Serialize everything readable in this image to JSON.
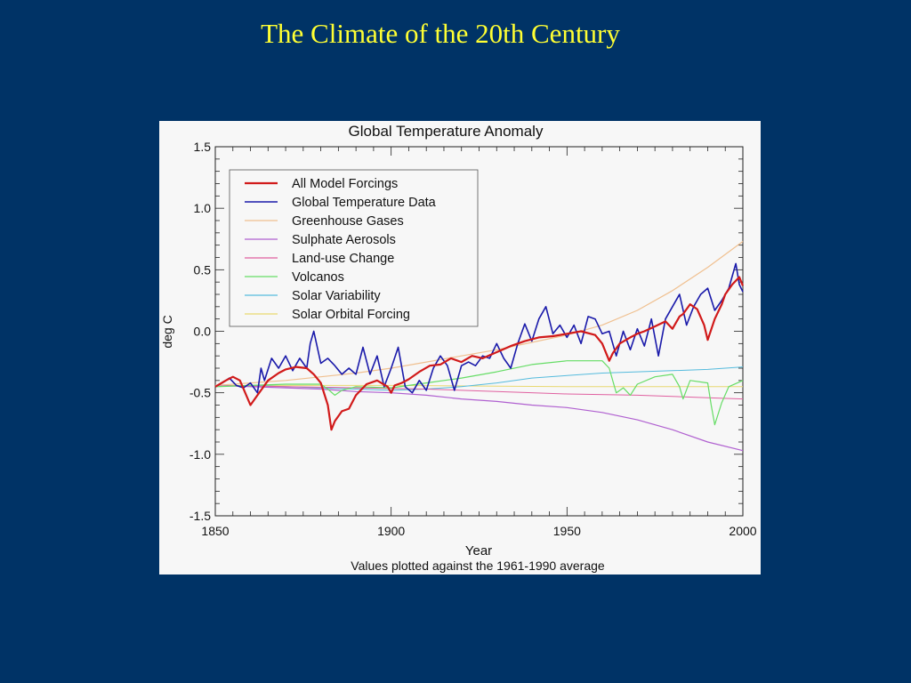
{
  "slide": {
    "title": "The Climate of the 20th Century",
    "background": "#003366",
    "title_color": "#ffff33"
  },
  "chart_data": {
    "type": "line",
    "title": "Global Temperature Anomaly",
    "xlabel": "Year",
    "ylabel": "deg C",
    "note": "Values plotted against the 1961-1990 average",
    "xlim": [
      1850,
      2000
    ],
    "ylim": [
      -1.5,
      1.5
    ],
    "xticks": [
      1850,
      1900,
      1950,
      2000
    ],
    "yticks": [
      "1.5",
      "1.0",
      "0.5",
      "0.0",
      "-0.5",
      "-1.0",
      "-1.5"
    ],
    "legend_position": "top-left",
    "grid": false,
    "series": [
      {
        "name": "All Model Forcings",
        "color": "#d11a1a",
        "width": 2.2,
        "x": [
          1850,
          1853,
          1855,
          1857,
          1860,
          1862,
          1865,
          1868,
          1870,
          1873,
          1876,
          1878,
          1880,
          1882,
          1883,
          1884,
          1886,
          1888,
          1890,
          1893,
          1896,
          1899,
          1900,
          1901,
          1903,
          1905,
          1908,
          1911,
          1914,
          1917,
          1920,
          1923,
          1926,
          1930,
          1934,
          1938,
          1942,
          1946,
          1950,
          1954,
          1958,
          1960,
          1962,
          1963,
          1965,
          1968,
          1970,
          1972,
          1975,
          1978,
          1980,
          1982,
          1983,
          1985,
          1987,
          1989,
          1990,
          1992,
          1994,
          1995,
          1997,
          1999,
          2000
        ],
        "y": [
          -0.45,
          -0.4,
          -0.37,
          -0.4,
          -0.6,
          -0.52,
          -0.4,
          -0.34,
          -0.31,
          -0.29,
          -0.3,
          -0.35,
          -0.42,
          -0.6,
          -0.8,
          -0.73,
          -0.65,
          -0.63,
          -0.52,
          -0.43,
          -0.4,
          -0.45,
          -0.5,
          -0.44,
          -0.42,
          -0.39,
          -0.33,
          -0.28,
          -0.27,
          -0.22,
          -0.25,
          -0.2,
          -0.22,
          -0.17,
          -0.12,
          -0.08,
          -0.05,
          -0.04,
          -0.02,
          0.0,
          -0.03,
          -0.1,
          -0.24,
          -0.18,
          -0.1,
          -0.05,
          -0.02,
          0.0,
          0.04,
          0.08,
          0.02,
          0.12,
          0.14,
          0.22,
          0.18,
          0.05,
          -0.07,
          0.1,
          0.22,
          0.3,
          0.38,
          0.44,
          0.37
        ]
      },
      {
        "name": "Global Temperature Data",
        "color": "#1a1aaa",
        "width": 1.6,
        "x": [
          1850,
          1852,
          1854,
          1856,
          1858,
          1860,
          1862,
          1863,
          1864,
          1866,
          1868,
          1870,
          1872,
          1874,
          1876,
          1877,
          1878,
          1880,
          1882,
          1884,
          1886,
          1888,
          1890,
          1892,
          1894,
          1896,
          1898,
          1900,
          1902,
          1904,
          1906,
          1908,
          1910,
          1912,
          1914,
          1916,
          1918,
          1920,
          1922,
          1924,
          1926,
          1928,
          1930,
          1932,
          1934,
          1936,
          1938,
          1940,
          1942,
          1944,
          1946,
          1948,
          1950,
          1952,
          1954,
          1956,
          1958,
          1960,
          1962,
          1964,
          1966,
          1968,
          1970,
          1972,
          1974,
          1976,
          1978,
          1980,
          1982,
          1984,
          1986,
          1988,
          1990,
          1992,
          1994,
          1996,
          1998,
          1999,
          2000
        ],
        "y": [
          -0.45,
          -0.42,
          -0.38,
          -0.44,
          -0.46,
          -0.42,
          -0.5,
          -0.3,
          -0.4,
          -0.22,
          -0.3,
          -0.2,
          -0.32,
          -0.22,
          -0.3,
          -0.1,
          0.0,
          -0.26,
          -0.22,
          -0.28,
          -0.35,
          -0.3,
          -0.35,
          -0.13,
          -0.35,
          -0.2,
          -0.45,
          -0.3,
          -0.13,
          -0.45,
          -0.5,
          -0.4,
          -0.48,
          -0.3,
          -0.2,
          -0.28,
          -0.48,
          -0.28,
          -0.25,
          -0.28,
          -0.2,
          -0.22,
          -0.1,
          -0.22,
          -0.3,
          -0.1,
          0.06,
          -0.08,
          0.1,
          0.2,
          -0.02,
          0.05,
          -0.05,
          0.05,
          -0.1,
          0.12,
          0.1,
          -0.02,
          0.0,
          -0.2,
          0.0,
          -0.15,
          0.02,
          -0.12,
          0.1,
          -0.2,
          0.1,
          0.2,
          0.3,
          0.05,
          0.2,
          0.3,
          0.35,
          0.17,
          0.25,
          0.35,
          0.55,
          0.38,
          0.32
        ]
      },
      {
        "name": "Greenhouse Gases",
        "color": "#f0c090",
        "width": 1.2,
        "x": [
          1850,
          1860,
          1870,
          1880,
          1890,
          1900,
          1910,
          1920,
          1930,
          1940,
          1950,
          1960,
          1970,
          1980,
          1990,
          2000
        ],
        "y": [
          -0.44,
          -0.42,
          -0.4,
          -0.37,
          -0.34,
          -0.3,
          -0.25,
          -0.2,
          -0.15,
          -0.09,
          -0.03,
          0.05,
          0.17,
          0.33,
          0.52,
          0.73
        ]
      },
      {
        "name": "Sulphate Aerosols",
        "color": "#b060d0",
        "width": 1.2,
        "x": [
          1850,
          1860,
          1870,
          1880,
          1890,
          1900,
          1910,
          1920,
          1930,
          1940,
          1950,
          1960,
          1970,
          1980,
          1990,
          2000
        ],
        "y": [
          -0.44,
          -0.45,
          -0.46,
          -0.47,
          -0.49,
          -0.5,
          -0.52,
          -0.55,
          -0.57,
          -0.6,
          -0.62,
          -0.66,
          -0.72,
          -0.8,
          -0.9,
          -0.97
        ]
      },
      {
        "name": "Land-use Change",
        "color": "#e060a0",
        "width": 1.0,
        "x": [
          1850,
          1870,
          1890,
          1910,
          1930,
          1950,
          1970,
          1990,
          2000
        ],
        "y": [
          -0.44,
          -0.45,
          -0.46,
          -0.47,
          -0.49,
          -0.51,
          -0.52,
          -0.54,
          -0.55
        ]
      },
      {
        "name": "Volcanos",
        "color": "#66dd66",
        "width": 1.2,
        "x": [
          1850,
          1860,
          1870,
          1880,
          1882,
          1884,
          1886,
          1890,
          1900,
          1910,
          1920,
          1930,
          1940,
          1950,
          1960,
          1962,
          1963,
          1964,
          1966,
          1968,
          1970,
          1975,
          1980,
          1982,
          1983,
          1985,
          1990,
          1991,
          1992,
          1994,
          1996,
          2000
        ],
        "y": [
          -0.45,
          -0.44,
          -0.43,
          -0.43,
          -0.47,
          -0.52,
          -0.48,
          -0.45,
          -0.46,
          -0.42,
          -0.38,
          -0.33,
          -0.27,
          -0.24,
          -0.24,
          -0.3,
          -0.4,
          -0.5,
          -0.46,
          -0.52,
          -0.43,
          -0.37,
          -0.35,
          -0.45,
          -0.55,
          -0.4,
          -0.42,
          -0.6,
          -0.76,
          -0.58,
          -0.45,
          -0.4
        ]
      },
      {
        "name": "Solar Variability",
        "color": "#55bbdd",
        "width": 1.0,
        "x": [
          1850,
          1860,
          1870,
          1880,
          1890,
          1900,
          1910,
          1920,
          1930,
          1940,
          1950,
          1960,
          1970,
          1980,
          1990,
          2000
        ],
        "y": [
          -0.45,
          -0.44,
          -0.45,
          -0.46,
          -0.47,
          -0.48,
          -0.47,
          -0.45,
          -0.42,
          -0.38,
          -0.36,
          -0.34,
          -0.33,
          -0.32,
          -0.31,
          -0.29
        ]
      },
      {
        "name": "Solar Orbital Forcing",
        "color": "#e8d870",
        "width": 1.0,
        "x": [
          1850,
          1900,
          1950,
          2000
        ],
        "y": [
          -0.44,
          -0.44,
          -0.45,
          -0.45
        ]
      }
    ]
  }
}
